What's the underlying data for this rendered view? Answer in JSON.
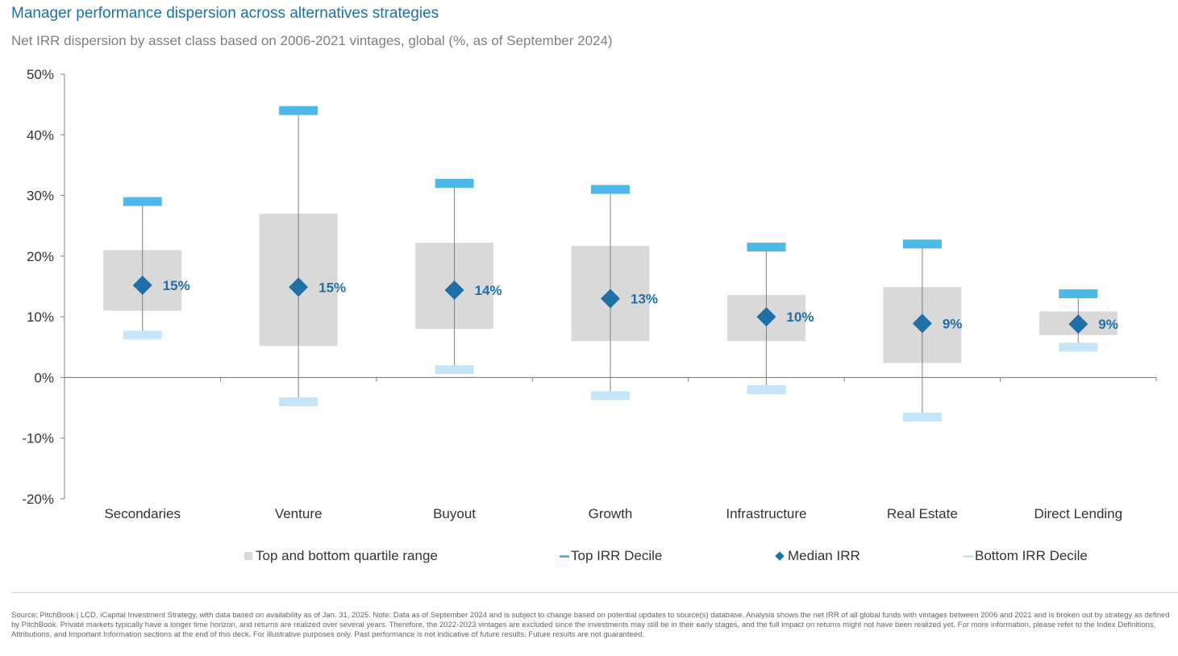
{
  "title": "Manager performance dispersion across alternatives strategies",
  "subtitle": "Net IRR dispersion by asset class based on 2006-2021 vintages, global (%, as of September 2024)",
  "chart_data": {
    "type": "box",
    "categories": [
      "Secondaries",
      "Venture",
      "Buyout",
      "Growth",
      "Infrastructure",
      "Real Estate",
      "Direct Lending"
    ],
    "y_ticks": [
      "50%",
      "40%",
      "30%",
      "20%",
      "10%",
      "0%",
      "-10%",
      "-20%"
    ],
    "ylim": [
      -20,
      50
    ],
    "series": [
      {
        "name": "Top and bottom quartile range",
        "values": [
          [
            11.0,
            21.0
          ],
          [
            5.2,
            27.0
          ],
          [
            8.0,
            22.2
          ],
          [
            6.0,
            21.7
          ],
          [
            6.0,
            13.6
          ],
          [
            2.4,
            14.9
          ],
          [
            7.0,
            10.9
          ]
        ]
      },
      {
        "name": "Top IRR Decile",
        "values": [
          29.0,
          44.0,
          32.0,
          31.0,
          21.5,
          22.0,
          13.8
        ]
      },
      {
        "name": "Median IRR",
        "values": [
          15.2,
          14.9,
          14.4,
          13.0,
          10.0,
          8.9,
          8.8
        ]
      },
      {
        "name": "Bottom IRR Decile",
        "values": [
          7.0,
          -4.0,
          1.3,
          -3.0,
          -2.0,
          -6.5,
          5.0
        ]
      }
    ],
    "median_labels": [
      "15%",
      "15%",
      "14%",
      "13%",
      "10%",
      "9%",
      "9%"
    ],
    "colors": {
      "quartile": "#d9d9da",
      "top_decile": "#4db9ea",
      "median": "#1f6fa8",
      "bottom_decile": "#c5e6f8",
      "whisker": "#7f7f7f",
      "axis": "#7f7f7f"
    },
    "legend_position": "bottom"
  },
  "legend": {
    "quartile": "Top and bottom quartile range",
    "top_decile": "Top IRR Decile",
    "median": "Median IRR",
    "bottom_decile": "Bottom IRR Decile"
  },
  "source": "Source: PitchBook | LCD, iCapital Investment Strategy, with data based on availability as of Jan. 31, 2025. Note: Data as of September 2024 and is subject to change based on potential updates to source(s) database. Analysis shows the net IRR of all global funds with vintages between 2006 and 2021 and is broken out by strategy as defined by PitchBook. Private markets typically have a longer time horizon, and returns are realized over several years. Therefore, the 2022-2023 vintages are excluded since the investments may still be in their early stages, and the full impact on returns might not have been realized yet. For more information, please refer to the Index Definitions, Attributions, and Important Information sections at the end of this deck. For illustrative purposes only. Past performance is not indicative of future results. Future results are not guaranteed."
}
